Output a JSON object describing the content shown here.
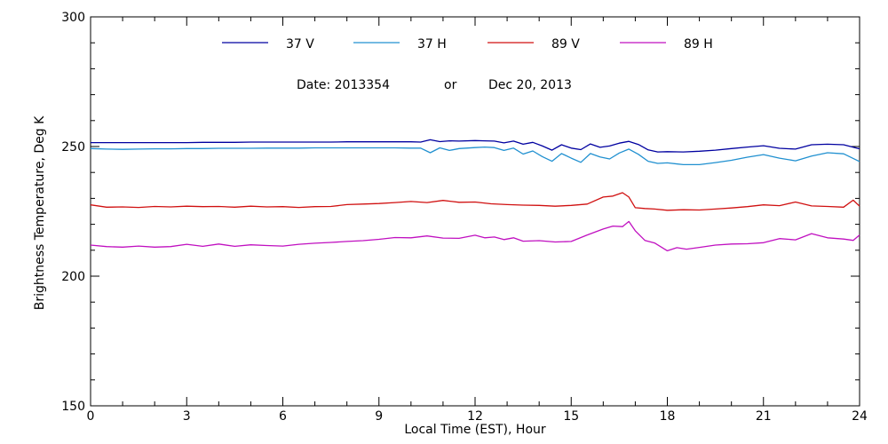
{
  "chart_data": {
    "type": "line",
    "title": "",
    "xlabel": "Local Time (EST), Hour",
    "ylabel": "Brightness Temperature, Deg K",
    "xlim": [
      0,
      24
    ],
    "ylim": [
      150,
      300
    ],
    "x_ticks": [
      0,
      3,
      6,
      9,
      12,
      15,
      18,
      21,
      24
    ],
    "y_ticks": [
      150,
      200,
      250,
      300
    ],
    "grid": false,
    "legend_position": "top",
    "annotation": {
      "date_label": "Date: 2013354",
      "or_label": "or",
      "date_text": "Dec 20, 2013"
    },
    "series": [
      {
        "name": "37 V",
        "color": "#0000a0",
        "x": [
          0,
          0.5,
          1,
          1.5,
          2,
          2.5,
          3,
          3.5,
          4,
          4.5,
          5,
          5.5,
          6,
          6.5,
          7,
          7.5,
          8,
          8.5,
          9,
          9.5,
          10,
          10.3,
          10.6,
          10.9,
          11.2,
          11.5,
          12,
          12.3,
          12.6,
          12.9,
          13.2,
          13.5,
          13.8,
          14.1,
          14.4,
          14.7,
          15,
          15.3,
          15.6,
          15.9,
          16.2,
          16.5,
          16.8,
          17.1,
          17.4,
          17.7,
          18,
          18.5,
          19,
          19.5,
          20,
          20.5,
          21,
          21.5,
          22,
          22.5,
          23,
          23.5,
          24
        ],
        "y": [
          251.5,
          251.5,
          251.5,
          251.5,
          251.5,
          251.5,
          251.5,
          251.6,
          251.6,
          251.6,
          251.7,
          251.7,
          251.7,
          251.7,
          251.7,
          251.7,
          251.8,
          251.8,
          251.8,
          251.8,
          251.8,
          251.7,
          252.6,
          251.9,
          252.2,
          252.1,
          252.3,
          252.2,
          252.1,
          251.4,
          252.1,
          250.9,
          251.6,
          250.2,
          248.6,
          250.7,
          249.4,
          248.8,
          251.0,
          249.7,
          250.2,
          251.3,
          252.0,
          250.8,
          248.7,
          247.9,
          248.0,
          247.9,
          248.2,
          248.6,
          249.2,
          249.8,
          250.3,
          249.3,
          249.0,
          250.7,
          250.9,
          250.7,
          249.1
        ]
      },
      {
        "name": "37 H",
        "color": "#2090d0",
        "x": [
          0,
          0.5,
          1,
          1.5,
          2,
          2.5,
          3,
          3.5,
          4,
          4.5,
          5,
          5.5,
          6,
          6.5,
          7,
          7.5,
          8,
          8.5,
          9,
          9.5,
          10,
          10.3,
          10.6,
          10.9,
          11.2,
          11.5,
          12,
          12.3,
          12.6,
          12.9,
          13.2,
          13.5,
          13.8,
          14.1,
          14.4,
          14.7,
          15,
          15.3,
          15.6,
          15.9,
          16.2,
          16.5,
          16.8,
          17.1,
          17.4,
          17.7,
          18,
          18.5,
          19,
          19.5,
          20,
          20.5,
          21,
          21.5,
          22,
          22.5,
          23,
          23.5,
          24
        ],
        "y": [
          249.2,
          249.0,
          248.9,
          249.0,
          249.1,
          249.1,
          249.2,
          249.2,
          249.3,
          249.3,
          249.3,
          249.4,
          249.4,
          249.4,
          249.5,
          249.5,
          249.5,
          249.5,
          249.5,
          249.5,
          249.4,
          249.4,
          247.6,
          249.5,
          248.5,
          249.2,
          249.6,
          249.8,
          249.6,
          248.5,
          249.4,
          247.1,
          248.3,
          246.1,
          244.3,
          247.3,
          245.5,
          243.9,
          247.3,
          246.0,
          245.2,
          247.5,
          249.0,
          247.0,
          244.3,
          243.5,
          243.7,
          243.0,
          243.0,
          243.8,
          244.7,
          245.9,
          246.9,
          245.5,
          244.5,
          246.3,
          247.6,
          247.2,
          244.2
        ]
      },
      {
        "name": "89 V",
        "color": "#d01010",
        "x": [
          0,
          0.5,
          1,
          1.5,
          2,
          2.5,
          3,
          3.5,
          4,
          4.5,
          5,
          5.5,
          6,
          6.5,
          7,
          7.5,
          8,
          8.5,
          9,
          9.5,
          10,
          10.5,
          11,
          11.5,
          12,
          12.5,
          13,
          13.5,
          14,
          14.5,
          15,
          15.5,
          16,
          16.3,
          16.6,
          16.8,
          17,
          17.3,
          17.6,
          18,
          18.5,
          19,
          19.5,
          20,
          20.5,
          21,
          21.5,
          22,
          22.5,
          23,
          23.5,
          23.8,
          24
        ],
        "y": [
          227.5,
          226.6,
          226.7,
          226.5,
          226.9,
          226.7,
          227.0,
          226.8,
          226.9,
          226.6,
          227.0,
          226.7,
          226.8,
          226.5,
          226.8,
          226.9,
          227.6,
          227.8,
          228.0,
          228.4,
          228.8,
          228.4,
          229.2,
          228.5,
          228.6,
          227.9,
          227.6,
          227.4,
          227.3,
          227.0,
          227.3,
          227.8,
          230.5,
          230.9,
          232.2,
          230.5,
          226.4,
          226.1,
          225.9,
          225.4,
          225.6,
          225.5,
          225.9,
          226.3,
          226.8,
          227.5,
          227.2,
          228.6,
          227.1,
          226.9,
          226.6,
          229.3,
          227.0
        ]
      },
      {
        "name": "89 H",
        "color": "#c010c0",
        "x": [
          0,
          0.5,
          1,
          1.5,
          2,
          2.5,
          3,
          3.5,
          4,
          4.5,
          5,
          5.5,
          6,
          6.5,
          7,
          7.5,
          8,
          8.5,
          9,
          9.5,
          10,
          10.5,
          11,
          11.5,
          12,
          12.3,
          12.6,
          12.9,
          13.2,
          13.5,
          14,
          14.5,
          15,
          15.5,
          16,
          16.3,
          16.6,
          16.8,
          17,
          17.3,
          17.6,
          18,
          18.3,
          18.6,
          19,
          19.5,
          20,
          20.5,
          21,
          21.5,
          22,
          22.5,
          23,
          23.5,
          23.8,
          24
        ],
        "y": [
          212.0,
          211.4,
          211.2,
          211.6,
          211.2,
          211.4,
          212.3,
          211.5,
          212.4,
          211.5,
          212.1,
          211.8,
          211.6,
          212.3,
          212.7,
          213.0,
          213.4,
          213.7,
          214.2,
          214.9,
          214.8,
          215.5,
          214.7,
          214.6,
          215.8,
          214.8,
          215.1,
          214.1,
          214.8,
          213.5,
          213.7,
          213.2,
          213.4,
          215.9,
          218.2,
          219.3,
          219.1,
          221.1,
          217.5,
          213.8,
          212.8,
          209.8,
          211.0,
          210.4,
          211.1,
          212.0,
          212.4,
          212.5,
          212.9,
          214.5,
          214.0,
          216.4,
          214.8,
          214.3,
          213.8,
          215.9
        ]
      }
    ]
  }
}
